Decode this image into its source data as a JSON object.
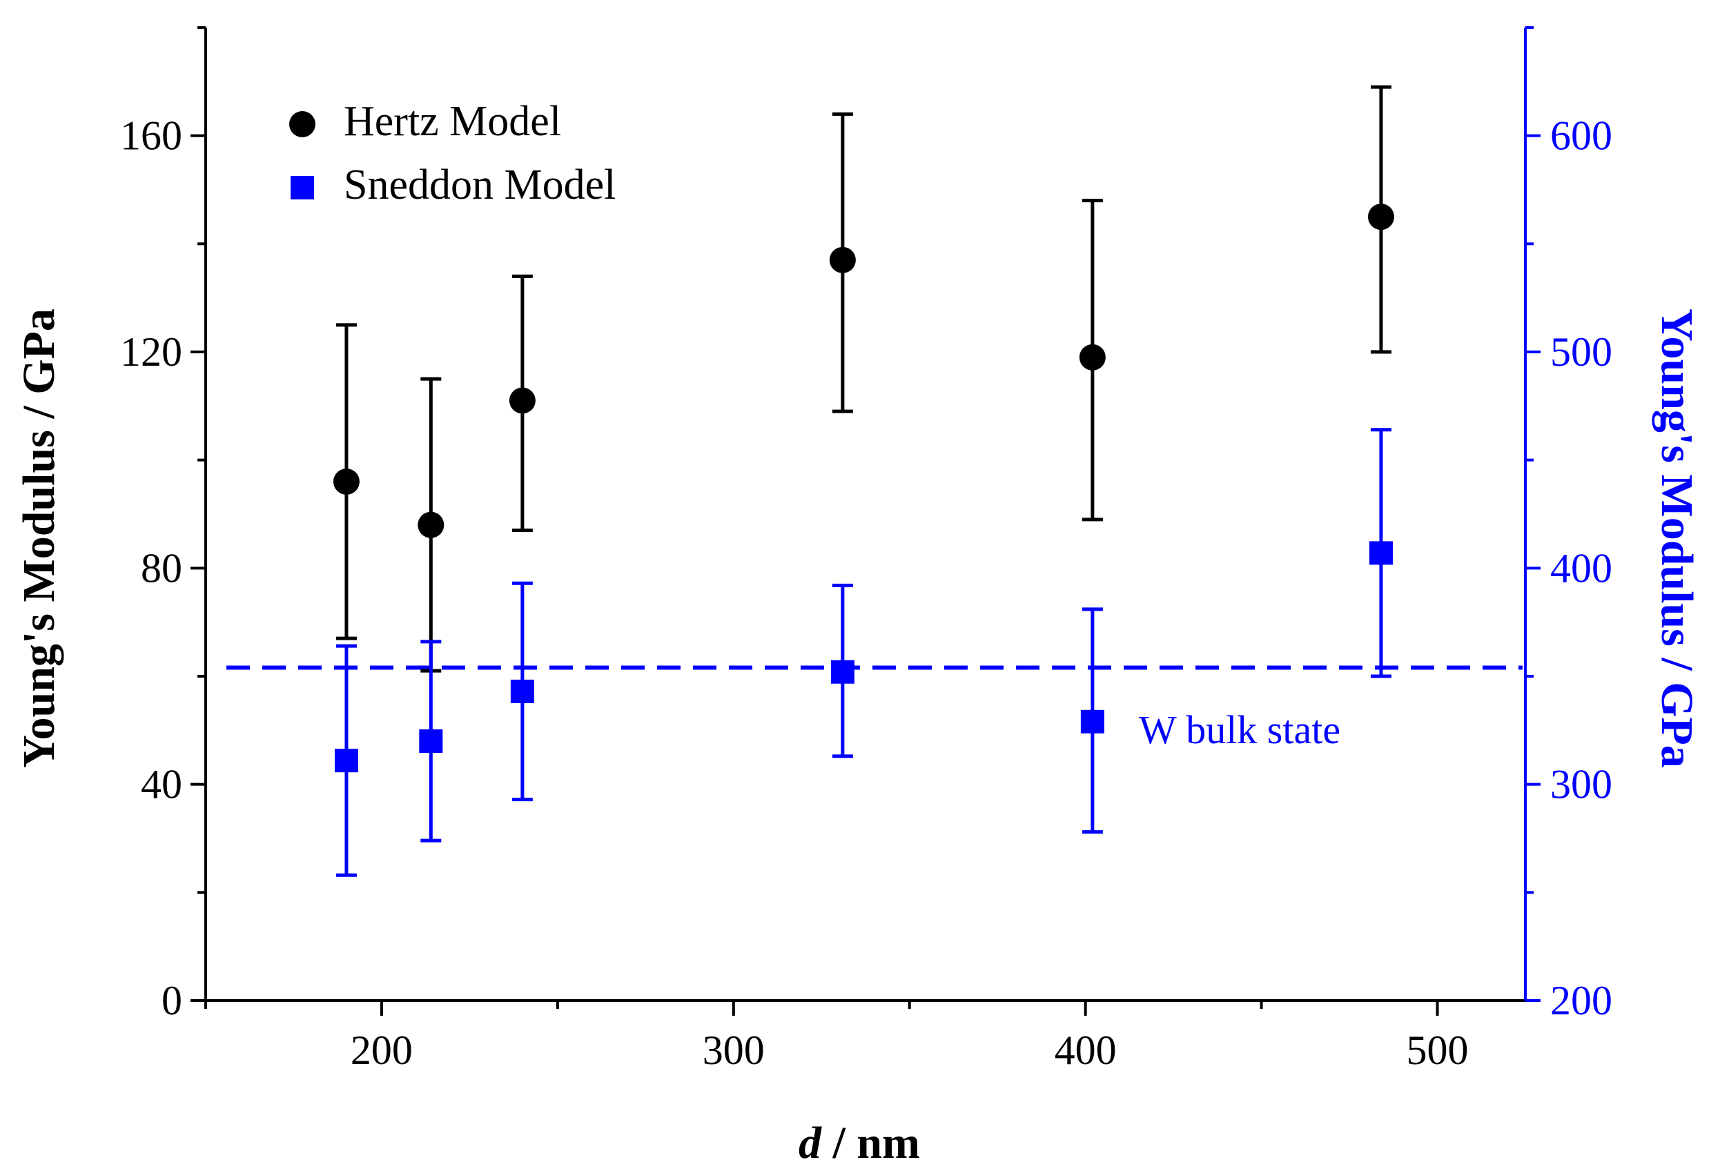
{
  "chart_data": {
    "type": "scatter",
    "title": "",
    "xlabel_italic": "d",
    "xlabel_rest": " / nm",
    "ylabel_left": "Young's Modulus / GPa",
    "ylabel_right": "Young's Modulus / GPa",
    "xlim": [
      150,
      525
    ],
    "ylim_left": [
      0,
      180
    ],
    "ylim_right": [
      200,
      650
    ],
    "x_ticks": [
      200,
      300,
      400,
      500
    ],
    "x_minor_ticks": [
      150,
      250,
      350,
      450
    ],
    "y_left_ticks": [
      0,
      40,
      80,
      120,
      160
    ],
    "y_left_minor_ticks": [
      20,
      60,
      100,
      140,
      180
    ],
    "y_right_ticks": [
      200,
      300,
      400,
      500,
      600
    ],
    "y_right_minor_ticks": [
      250,
      350,
      450,
      550,
      650
    ],
    "grid": false,
    "legend_position": "top-left",
    "series": [
      {
        "name": "Hertz Model",
        "axis": "left",
        "marker": "circle",
        "color": "#000000",
        "points": [
          {
            "x": 190,
            "y": 96,
            "err_low": 67,
            "err_high": 125
          },
          {
            "x": 214,
            "y": 88,
            "err_low": 61,
            "err_high": 115
          },
          {
            "x": 240,
            "y": 111,
            "err_low": 87,
            "err_high": 134
          },
          {
            "x": 331,
            "y": 137,
            "err_low": 109,
            "err_high": 164
          },
          {
            "x": 402,
            "y": 119,
            "err_low": 89,
            "err_high": 148
          },
          {
            "x": 484,
            "y": 145,
            "err_low": 120,
            "err_high": 169
          }
        ]
      },
      {
        "name": "Sneddon Model",
        "axis": "right",
        "marker": "square",
        "color": "#0000ff",
        "points": [
          {
            "x": 190,
            "y": 311,
            "err_low": 258,
            "err_high": 364
          },
          {
            "x": 214,
            "y": 320,
            "err_low": 274,
            "err_high": 366
          },
          {
            "x": 240,
            "y": 343,
            "err_low": 293,
            "err_high": 393
          },
          {
            "x": 331,
            "y": 352,
            "err_low": 313,
            "err_high": 392
          },
          {
            "x": 402,
            "y": 329,
            "err_low": 278,
            "err_high": 381
          },
          {
            "x": 484,
            "y": 407,
            "err_low": 350,
            "err_high": 464
          }
        ]
      }
    ],
    "reference_line": {
      "label": "W bulk state",
      "axis": "right",
      "y": 354,
      "style": "dashed",
      "color": "#0000ff"
    },
    "colors": {
      "left_axis": "#000000",
      "right_axis": "#0000ff"
    }
  }
}
